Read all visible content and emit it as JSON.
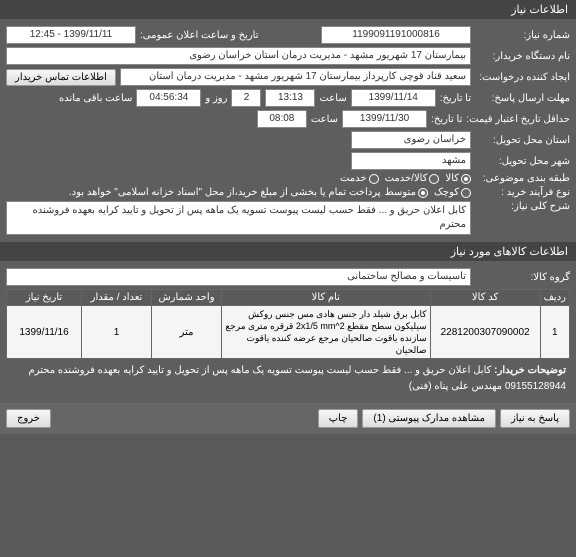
{
  "colors": {
    "bg": "#5a5a5a",
    "panel": "#5e5e5e",
    "header": "#444444",
    "text_light": "#ffffff",
    "field_bg": "#ffffff",
    "border": "#888888"
  },
  "section1": {
    "title": "اطلاعات نیاز",
    "request_no_label": "شماره نیاز:",
    "request_no": "1199091191000816",
    "announce_label": "تاریخ و ساعت اعلان عمومی:",
    "announce_value": "1399/11/11 - 12:45",
    "buyer_label": "نام دستگاه خریدار:",
    "buyer_value": "بیمارستان 17 شهریور مشهد - مدیریت درمان استان خراسان رضوی",
    "creator_label": "ایجاد کننده درخواست:",
    "creator_value": "سعید قناد قوچی کارپرداز بیمارستان 17 شهریور مشهد - مدیریت درمان استان",
    "contact_btn": "اطلاعات تماس خریدار",
    "deadline_label": "مهلت ارسال پاسخ:",
    "to_date_label": "تا تاریخ:",
    "deadline_date": "1399/11/14",
    "time_label": "ساعت",
    "deadline_time": "13:13",
    "days_count": "2",
    "days_label": "روز و",
    "hours_count": "04:56:34",
    "hours_label": "ساعت باقی مانده",
    "validity_label": "حداقل تاریخ اعتبار قیمت:",
    "validity_to_label": "تا تاریخ:",
    "validity_date": "1399/11/30",
    "validity_time": "08:08",
    "delivery_state_label": "استان محل تحویل:",
    "delivery_state": "خراسان رضوی",
    "delivery_city_label": "شهر محل تحویل:",
    "delivery_city": "مشهد",
    "category_label": "طبقه بندی موضوعی:",
    "cat_goods": "کالا",
    "cat_service": "کالا/خدمت",
    "cat_service2": "خدمت",
    "process_label": "نوع فرآیند خرید :",
    "proc_small": "کوچک",
    "proc_mid": "متوسط",
    "proc_note": "پرداخت تمام یا بخشی از مبلغ خرید،از محل \"اسناد خزانه اسلامی\" خواهد بود.",
    "general_desc_label": "شرح کلی نیاز:",
    "general_desc": "کابل اعلان حریق و ... فقط حسب لیست پیوست  تسویه یک ماهه پس از تحویل و تایید کرایه بعهده فروشنده محترم"
  },
  "section2": {
    "title": "اطلاعات کالاهای مورد نیاز",
    "group_label": "گروه کالا:",
    "group_value": "تاسیسات و مصالح ساختمانی",
    "cols": {
      "row": "ردیف",
      "code": "کد کالا",
      "name": "نام کالا",
      "unit": "واحد شمارش",
      "qty": "تعداد / مقدار",
      "date": "تاریخ نیاز"
    },
    "items": [
      {
        "row": "1",
        "code": "2281200307090002",
        "name": "کابل برق شیلد دار جنس هادی مس جنس روکش سیلیکون سطح مقطع 2x1/5 mm^2 قرقره متری مرجع سازنده یاقوت صالحیان مرجع عرضه کننده یاقوت صالحیان",
        "unit": "متر",
        "qty": "1",
        "date": "1399/11/16"
      }
    ],
    "buyer_note_label": "توضیحات خریدار:",
    "buyer_note": "کابل اعلان حریق و ... فقط حسب لیست پیوست  تسویه یک ماهه پس از تحویل و تایید کرایه بعهده فروشنده محترم 09155128944 مهندس علی پناه (فنی)"
  },
  "footer": {
    "reply": "پاسخ به نیاز",
    "attachments": "مشاهده مدارک پیوستی (1)",
    "print": "چاپ",
    "exit": "خروج"
  }
}
